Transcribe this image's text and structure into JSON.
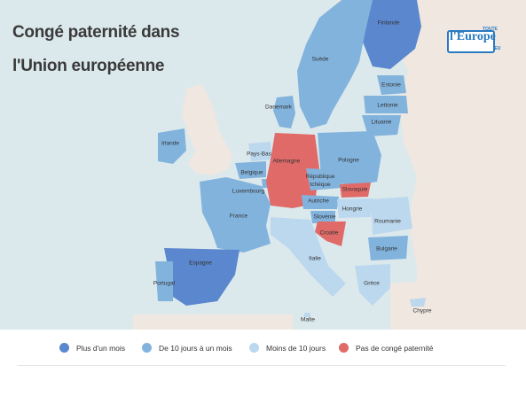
{
  "title": {
    "line1": "Congé paternité dans",
    "line2": "l'Union européenne"
  },
  "logo": {
    "main": "l'Europe",
    "top": "TOUTE",
    "suffix": ".EU"
  },
  "colors": {
    "sea": "#dce9ec",
    "land": "#efe7e0",
    "plus_un_mois": "#5a87ce",
    "dix_jours_un_mois": "#82b3dd",
    "moins_dix_jours": "#bcd8ee",
    "aucun": "#e06a68"
  },
  "legend": [
    {
      "label": "Plus d'un mois",
      "color": "#5a87ce"
    },
    {
      "label": "De 10 jours à un mois",
      "color": "#82b3dd"
    },
    {
      "label": "Moins de 10 jours",
      "color": "#bcd8ee"
    },
    {
      "label": "Pas de congé paternité",
      "color": "#e06a68"
    }
  ],
  "countries": [
    {
      "name": "Finlande",
      "category": "plus_un_mois"
    },
    {
      "name": "Suède",
      "category": "dix_jours_un_mois"
    },
    {
      "name": "Danemark",
      "category": "dix_jours_un_mois"
    },
    {
      "name": "Estonie",
      "category": "dix_jours_un_mois"
    },
    {
      "name": "Lettonie",
      "category": "dix_jours_un_mois"
    },
    {
      "name": "Lituanie",
      "category": "dix_jours_un_mois"
    },
    {
      "name": "Irlande",
      "category": "dix_jours_un_mois"
    },
    {
      "name": "Pays-Bas",
      "category": "moins_dix_jours"
    },
    {
      "name": "Belgique",
      "category": "dix_jours_un_mois"
    },
    {
      "name": "Luxembourg",
      "category": "dix_jours_un_mois"
    },
    {
      "name": "Allemagne",
      "category": "aucun"
    },
    {
      "name": "Pologne",
      "category": "dix_jours_un_mois"
    },
    {
      "name": "République tchèque",
      "category": "dix_jours_un_mois"
    },
    {
      "name": "Slovaquie",
      "category": "aucun"
    },
    {
      "name": "Autriche",
      "category": "dix_jours_un_mois"
    },
    {
      "name": "Hongrie",
      "category": "moins_dix_jours"
    },
    {
      "name": "Slovénie",
      "category": "dix_jours_un_mois"
    },
    {
      "name": "Croatie",
      "category": "aucun"
    },
    {
      "name": "Roumanie",
      "category": "moins_dix_jours"
    },
    {
      "name": "Bulgarie",
      "category": "dix_jours_un_mois"
    },
    {
      "name": "France",
      "category": "dix_jours_un_mois"
    },
    {
      "name": "Espagne",
      "category": "plus_un_mois"
    },
    {
      "name": "Portugal",
      "category": "dix_jours_un_mois"
    },
    {
      "name": "Italie",
      "category": "moins_dix_jours"
    },
    {
      "name": "Grèce",
      "category": "moins_dix_jours"
    },
    {
      "name": "Chypre",
      "category": "moins_dix_jours"
    },
    {
      "name": "Malte",
      "category": "moins_dix_jours"
    }
  ]
}
